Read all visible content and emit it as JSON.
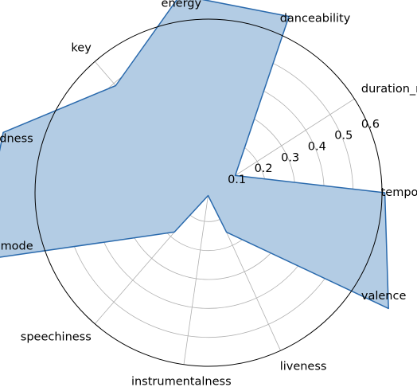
{
  "chart_data": {
    "type": "radar",
    "categories": [
      "tempo",
      "duration_ms",
      "danceability",
      "energy",
      "key",
      "loudness",
      "mode",
      "speechiness",
      "instrumentalness",
      "liveness",
      "valence"
    ],
    "series": [
      {
        "values": [
          0.61,
          0.11,
          0.67,
          0.69,
          0.49,
          0.74,
          0.83,
          0.18,
          0.01,
          0.15,
          0.74
        ]
      }
    ],
    "rlim": [
      0,
      0.6
    ],
    "r_ticks": [
      0.1,
      0.2,
      0.3,
      0.4,
      0.5,
      0.6
    ],
    "r_tick_labels": [
      "0.1",
      "0.2",
      "0.3",
      "0.4",
      "0.5",
      "0.6"
    ],
    "grid": true,
    "colors": {
      "line": "#2a6aad",
      "fill": "#b3cce4",
      "grid": "#b0b0b0",
      "spine": "#000000"
    }
  }
}
